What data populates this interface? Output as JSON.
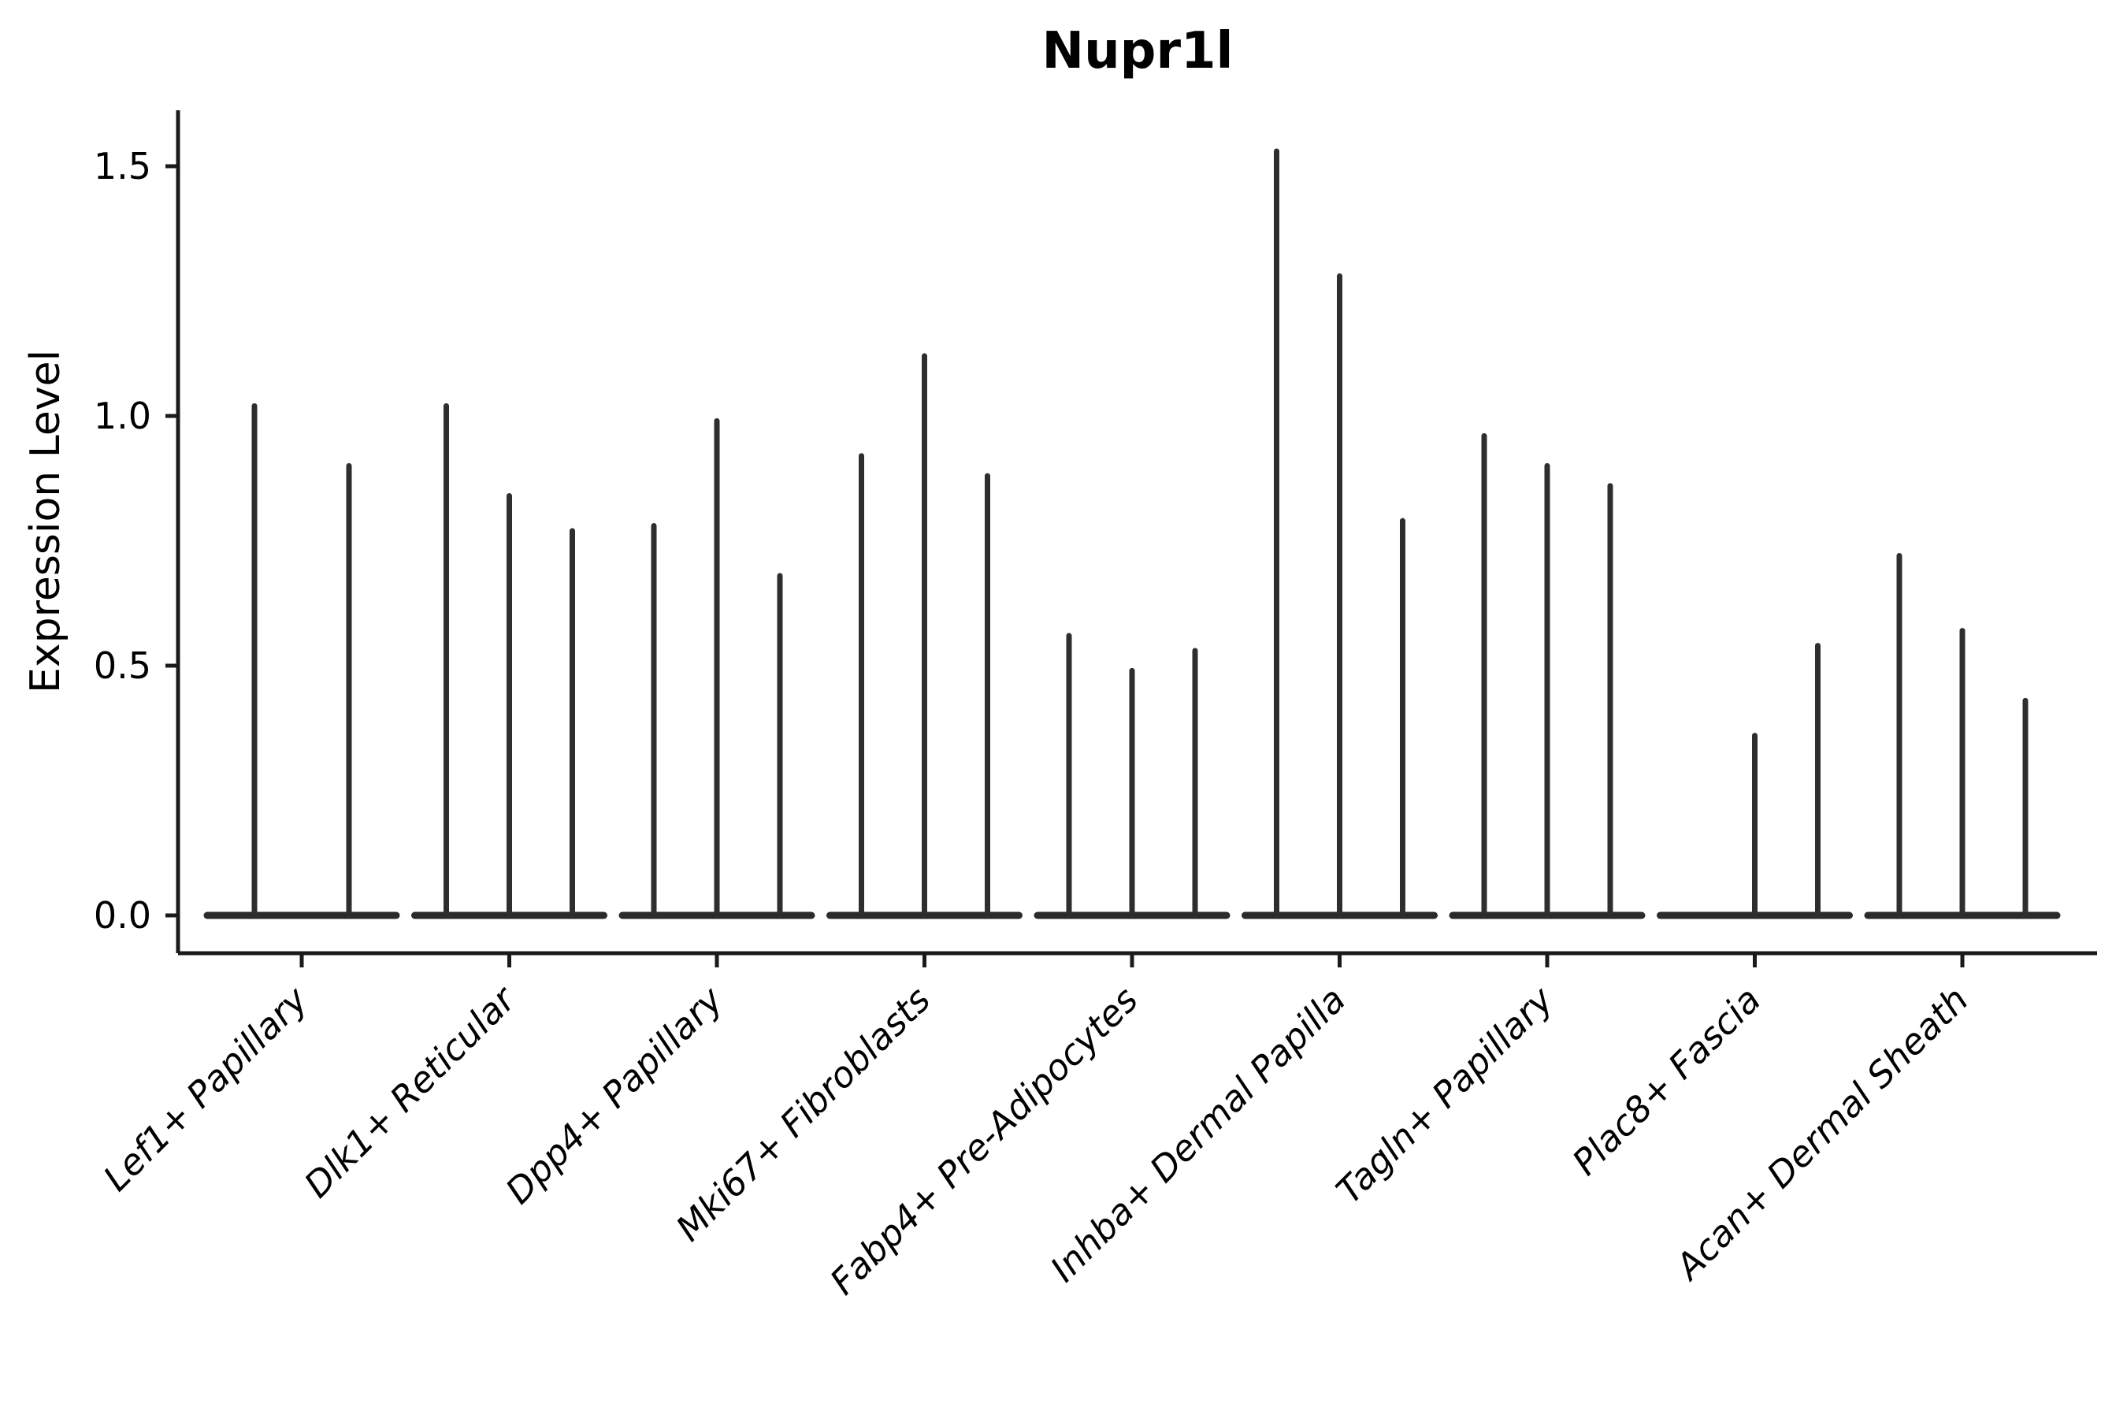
{
  "chart_data": {
    "type": "violin",
    "title": "Nupr1l",
    "xlabel": "",
    "ylabel": "Expression Level",
    "ylim": [
      0.0,
      1.61
    ],
    "yticks": [
      0.0,
      0.5,
      1.0,
      1.5
    ],
    "ytick_labels": [
      "0.0",
      "0.5",
      "1.0",
      "1.5"
    ],
    "grid": false,
    "legend_position": "none",
    "note": "Each category shows narrow violins: bodies are flat at expression 0 with a thin spike rising to the maximum expression value; Lef1+ Papillary has only two violins and the first Plac8+ Fascia violin is completely flat at 0.",
    "categories": [
      "Lef1+ Papillary",
      "Dlk1+ Reticular",
      "Dpp4+ Papillary",
      "Mki67+ Fibroblasts",
      "Fabp4+ Pre-Adipocytes",
      "Inhba+ Dermal Papilla",
      "Tagln+ Papillary",
      "Plac8+ Fascia",
      "Acan+ Dermal Sheath"
    ],
    "groups": [
      {
        "label": "Lef1+ Papillary",
        "violin_peaks": [
          1.02,
          0.9
        ]
      },
      {
        "label": "Dlk1+ Reticular",
        "violin_peaks": [
          1.02,
          0.84,
          0.77
        ]
      },
      {
        "label": "Dpp4+ Papillary",
        "violin_peaks": [
          0.78,
          0.99,
          0.68
        ]
      },
      {
        "label": "Mki67+ Fibroblasts",
        "violin_peaks": [
          0.92,
          1.12,
          0.88
        ]
      },
      {
        "label": "Fabp4+ Pre-Adipocytes",
        "violin_peaks": [
          0.56,
          0.49,
          0.53
        ]
      },
      {
        "label": "Inhba+ Dermal Papilla",
        "violin_peaks": [
          1.53,
          1.28,
          0.79
        ]
      },
      {
        "label": "Tagln+ Papillary",
        "violin_peaks": [
          0.96,
          0.9,
          0.86
        ]
      },
      {
        "label": "Plac8+ Fascia",
        "violin_peaks": [
          0.0,
          0.36,
          0.54
        ]
      },
      {
        "label": "Acan+ Dermal Sheath",
        "violin_peaks": [
          0.72,
          0.57,
          0.43
        ]
      }
    ],
    "colors": {
      "spine": "#1a1a1a",
      "violin_line": "#2e2e2e",
      "baseline": "#2b2b2b",
      "text": "#000000",
      "background": "#ffffff"
    }
  }
}
